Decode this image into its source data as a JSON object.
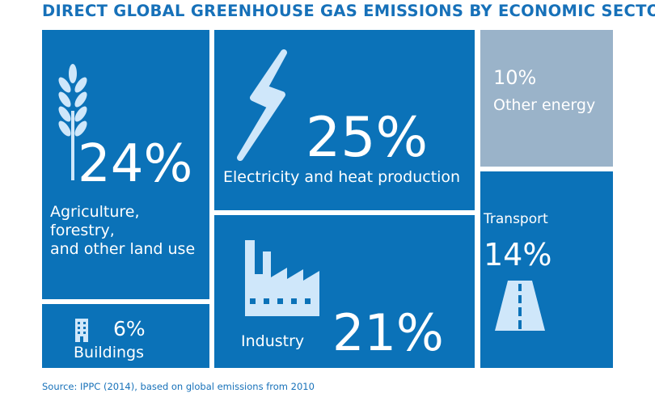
{
  "title": "DIRECT GLOBAL GREENHOUSE GAS EMISSIONS BY ECONOMIC SECTOR",
  "source": "Source: IPPC (2014), based on global emissions from 2010",
  "colors": {
    "tile": "#0b72b8",
    "tile_muted": "#9ab3c9",
    "icon": "#cfe7fa",
    "title": "#1771b9"
  },
  "sectors": {
    "agriculture": {
      "pct": "24%",
      "label_lines": [
        "Agriculture,",
        "forestry,",
        "and other land use"
      ],
      "icon": "wheat-icon"
    },
    "electricity": {
      "pct": "25%",
      "label": "Electricity and heat production",
      "icon": "lightning-icon"
    },
    "other_energy": {
      "pct": "10%",
      "label": "Other energy"
    },
    "transport": {
      "pct": "14%",
      "label": "Transport",
      "icon": "road-icon"
    },
    "industry": {
      "pct": "21%",
      "label": "Industry",
      "icon": "factory-icon"
    },
    "buildings": {
      "pct": "6%",
      "label": "Buildings",
      "icon": "building-icon"
    }
  },
  "chart_data": {
    "type": "treemap",
    "title": "DIRECT GLOBAL GREENHOUSE GAS EMISSIONS BY ECONOMIC SECTOR",
    "unit": "%",
    "categories": [
      "Agriculture, forestry, and other land use",
      "Electricity and heat production",
      "Other energy",
      "Transport",
      "Industry",
      "Buildings"
    ],
    "values": [
      24,
      25,
      10,
      14,
      21,
      6
    ]
  }
}
